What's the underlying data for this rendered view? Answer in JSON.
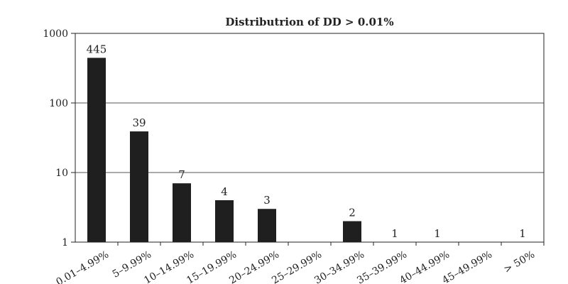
{
  "chart_data": {
    "type": "bar",
    "title": "Distributrion of DD > 0.01%",
    "xlabel": "",
    "ylabel": "",
    "y_scale": "log",
    "ylim": [
      1,
      1000
    ],
    "y_ticks": [
      "1",
      "10",
      "100",
      "1000"
    ],
    "grid": "horizontal",
    "categories": [
      "0.01–4.99%",
      "5–9.99%",
      "10–14.99%",
      "15–19.99%",
      "20–24.99%",
      "25–29.99%",
      "30–34.99%",
      "35–39.99%",
      "40–44.99%",
      "45–49.99%",
      "> 50%"
    ],
    "values": [
      445,
      39,
      7,
      4,
      3,
      null,
      2,
      1,
      1,
      null,
      1
    ],
    "data_labels": [
      "445",
      "39",
      "7",
      "4",
      "3",
      "",
      "2",
      "1",
      "1",
      "",
      "1"
    ],
    "bar_color": "#1f1f1f"
  }
}
